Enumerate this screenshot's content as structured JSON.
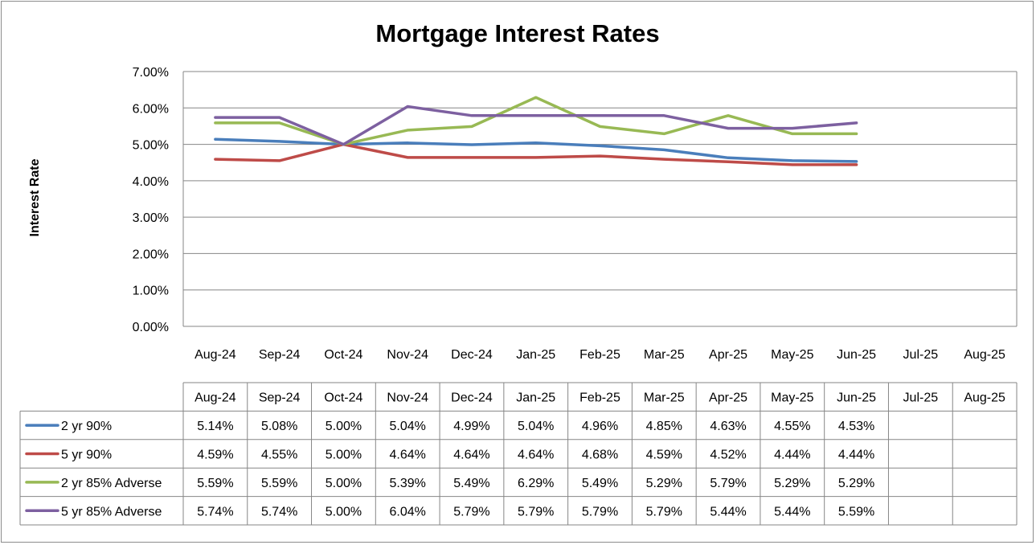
{
  "chart_data": {
    "type": "line",
    "title": "Mortgage Interest Rates",
    "xlabel": "",
    "ylabel": "Interest Rate",
    "categories": [
      "Aug-24",
      "Sep-24",
      "Oct-24",
      "Nov-24",
      "Dec-24",
      "Jan-25",
      "Feb-25",
      "Mar-25",
      "Apr-25",
      "May-25",
      "Jun-25",
      "Jul-25",
      "Aug-25"
    ],
    "ylim": [
      0,
      7
    ],
    "yticks": [
      "0.00%",
      "1.00%",
      "2.00%",
      "3.00%",
      "4.00%",
      "5.00%",
      "6.00%",
      "7.00%"
    ],
    "grid": true,
    "legend": "data-table",
    "series": [
      {
        "name": "2 yr 90%",
        "color": "#4a7ebb",
        "values": [
          5.14,
          5.08,
          5.0,
          5.04,
          4.99,
          5.04,
          4.96,
          4.85,
          4.63,
          4.55,
          4.53,
          null,
          null
        ],
        "labels": [
          "5.14%",
          "5.08%",
          "5.00%",
          "5.04%",
          "4.99%",
          "5.04%",
          "4.96%",
          "4.85%",
          "4.63%",
          "4.55%",
          "4.53%",
          "",
          ""
        ]
      },
      {
        "name": "5 yr 90%",
        "color": "#be4b48",
        "values": [
          4.59,
          4.55,
          5.0,
          4.64,
          4.64,
          4.64,
          4.68,
          4.59,
          4.52,
          4.44,
          4.44,
          null,
          null
        ],
        "labels": [
          "4.59%",
          "4.55%",
          "5.00%",
          "4.64%",
          "4.64%",
          "4.64%",
          "4.68%",
          "4.59%",
          "4.52%",
          "4.44%",
          "4.44%",
          "",
          ""
        ]
      },
      {
        "name": "2 yr 85% Adverse",
        "color": "#98b954",
        "values": [
          5.59,
          5.59,
          5.0,
          5.39,
          5.49,
          6.29,
          5.49,
          5.29,
          5.79,
          5.29,
          5.29,
          null,
          null
        ],
        "labels": [
          "5.59%",
          "5.59%",
          "5.00%",
          "5.39%",
          "5.49%",
          "6.29%",
          "5.49%",
          "5.29%",
          "5.79%",
          "5.29%",
          "5.29%",
          "",
          ""
        ]
      },
      {
        "name": "5 yr 85% Adverse",
        "color": "#7d60a0",
        "values": [
          5.74,
          5.74,
          5.0,
          6.04,
          5.79,
          5.79,
          5.79,
          5.79,
          5.44,
          5.44,
          5.59,
          null,
          null
        ],
        "labels": [
          "5.74%",
          "5.74%",
          "5.00%",
          "6.04%",
          "5.79%",
          "5.79%",
          "5.79%",
          "5.79%",
          "5.44%",
          "5.44%",
          "5.59%",
          "",
          ""
        ]
      }
    ]
  }
}
